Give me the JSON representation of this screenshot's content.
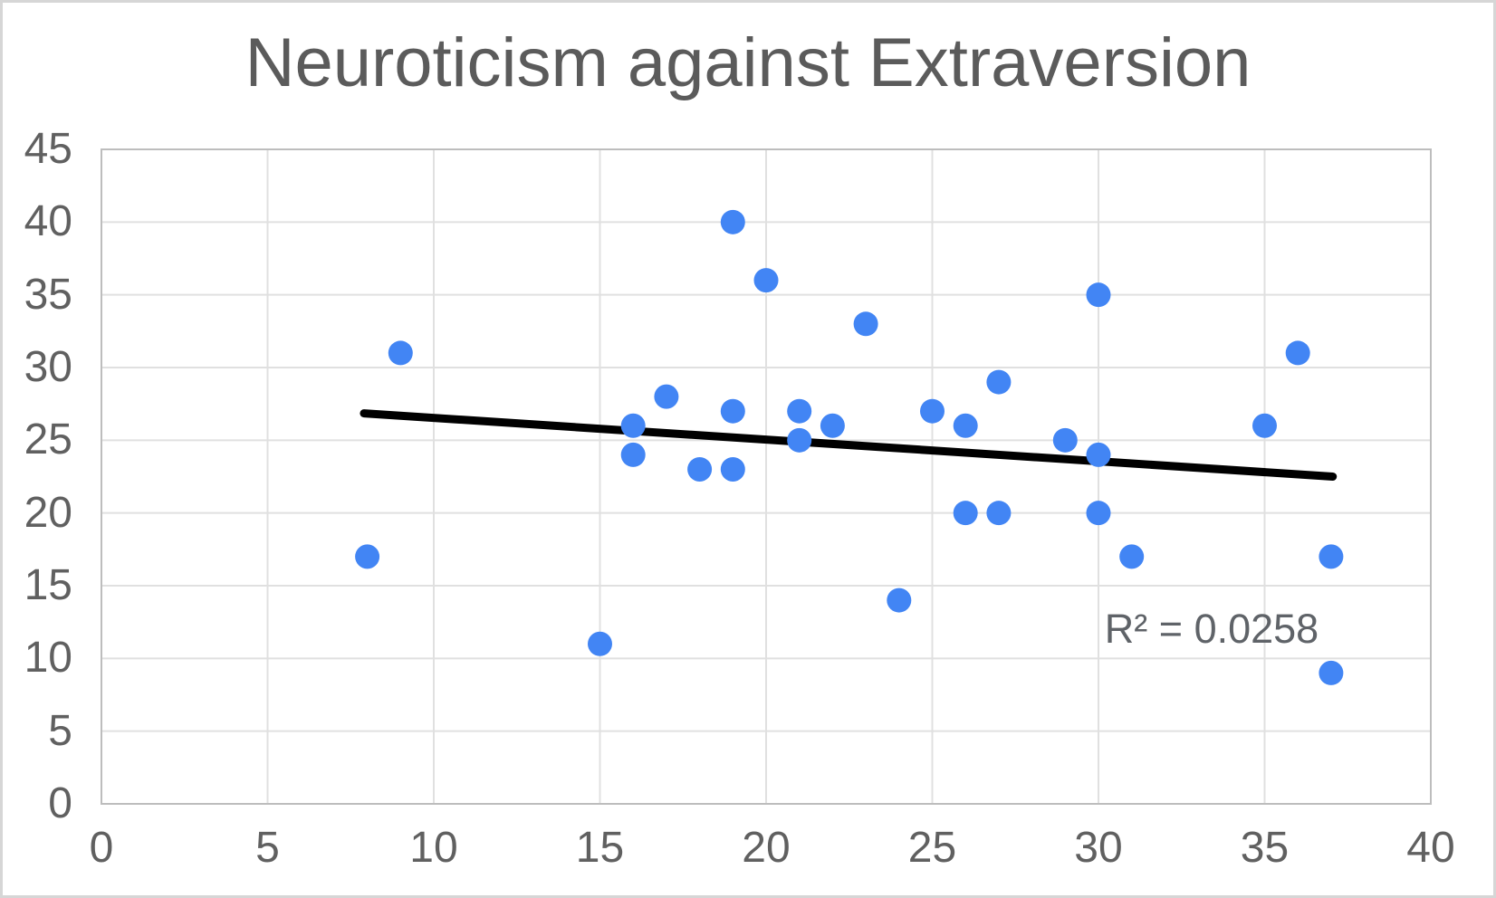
{
  "chart_data": {
    "type": "scatter",
    "title": "Neuroticism against Extraversion",
    "annotation": "R² = 0.0258",
    "r_squared": 0.0258,
    "xlim": [
      0,
      40
    ],
    "ylim": [
      0,
      45
    ],
    "x_ticks": [
      0,
      5,
      10,
      15,
      20,
      25,
      30,
      35,
      40
    ],
    "y_ticks": [
      0,
      5,
      10,
      15,
      20,
      25,
      30,
      35,
      40,
      45
    ],
    "grid": true,
    "legend_position": "none",
    "point_color": "#4285f4",
    "trendline_color": "#000000",
    "gridline_color": "#e0e0e0",
    "plot_border_color": "#bdbdbd",
    "points": [
      [
        8,
        17
      ],
      [
        9,
        31
      ],
      [
        15,
        11
      ],
      [
        16,
        24
      ],
      [
        16,
        26
      ],
      [
        17,
        28
      ],
      [
        18,
        23
      ],
      [
        19,
        23
      ],
      [
        19,
        27
      ],
      [
        19,
        40
      ],
      [
        20,
        36
      ],
      [
        21,
        25
      ],
      [
        21,
        27
      ],
      [
        22,
        26
      ],
      [
        23,
        33
      ],
      [
        24,
        14
      ],
      [
        25,
        27
      ],
      [
        26,
        20
      ],
      [
        26,
        26
      ],
      [
        27,
        20
      ],
      [
        27,
        29
      ],
      [
        29,
        25
      ],
      [
        30,
        20
      ],
      [
        30,
        24
      ],
      [
        30,
        35
      ],
      [
        31,
        17
      ],
      [
        35,
        26
      ],
      [
        36,
        31
      ],
      [
        37,
        9
      ],
      [
        37,
        17
      ]
    ],
    "trendline": {
      "x1": 7.9,
      "y1": 26.85,
      "x2": 37.05,
      "y2": 22.5
    }
  }
}
